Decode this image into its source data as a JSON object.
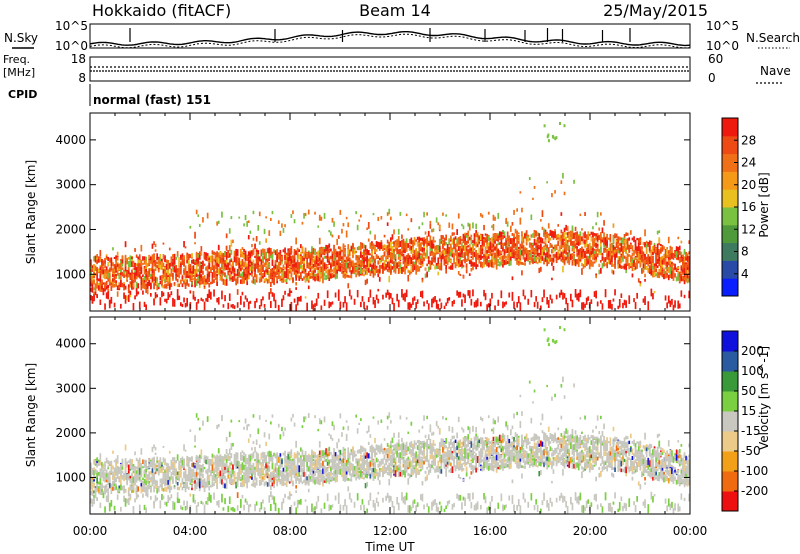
{
  "header": {
    "left": "Hokkaido (fitACF)",
    "center": "Beam 14",
    "right": "25/May/2015"
  },
  "noise_panel": {
    "left_label": "N.Sky",
    "right_label": "N.Search",
    "tick_top": "10^5",
    "tick_bottom": "10^0",
    "right_tick_top": "10^5",
    "right_tick_bottom": "10^0"
  },
  "freq_panel": {
    "label_line1": "Freq.",
    "label_line2": "[MHz]",
    "left_ticks": [
      "18",
      "8"
    ],
    "right_ticks": [
      "60",
      "0"
    ],
    "right_label": "Nave",
    "cpid_label": "CPID",
    "cpid_text": "normal (fast) 151"
  },
  "chart_data": [
    {
      "type": "heatmap",
      "title": "",
      "ylabel": "Slant Range [km]",
      "xlabel": "",
      "ylim": [
        180,
        4600
      ],
      "yticks": [
        1000,
        2000,
        3000,
        4000
      ],
      "colorbar": {
        "label": "Power [dB]",
        "ticks": [
          "4",
          "8",
          "12",
          "16",
          "20",
          "24",
          "28"
        ],
        "range": [
          0,
          32
        ],
        "colors": [
          "#0a1fff",
          "#2a4aa8",
          "#3d7a60",
          "#4f9a3a",
          "#7ac142",
          "#e8c020",
          "#f49a18",
          "#f07018",
          "#ee4a14",
          "#ee1a0e"
        ]
      },
      "features": [
        {
          "t": [
            0,
            24
          ],
          "r_center": [
            1000,
            1050,
            1150,
            1200,
            1300,
            1450,
            1550,
            1600,
            1500,
            1150
          ],
          "width": 320,
          "power_dB": 26
        }
      ]
    },
    {
      "type": "heatmap",
      "title": "",
      "ylabel": "Slant Range [km]",
      "xlabel": "Time UT",
      "ylim": [
        180,
        4600
      ],
      "yticks": [
        1000,
        2000,
        3000,
        4000
      ],
      "xticks": [
        "00:00",
        "04:00",
        "08:00",
        "12:00",
        "16:00",
        "20:00",
        "00:00"
      ],
      "x_hours": [
        0,
        4,
        8,
        12,
        16,
        20,
        24
      ],
      "colorbar": {
        "label": "Velocity [m s^-1]",
        "ticks": [
          "200",
          "100",
          "50",
          "15",
          "-15",
          "-50",
          "-100",
          "-200"
        ],
        "range": [
          -250,
          250
        ],
        "colors": [
          "#ee1010",
          "#f06a10",
          "#f2a018",
          "#ecca88",
          "#c8c8c0",
          "#7ad040",
          "#3a9a3a",
          "#2a5aa0",
          "#1010dd"
        ]
      }
    }
  ]
}
